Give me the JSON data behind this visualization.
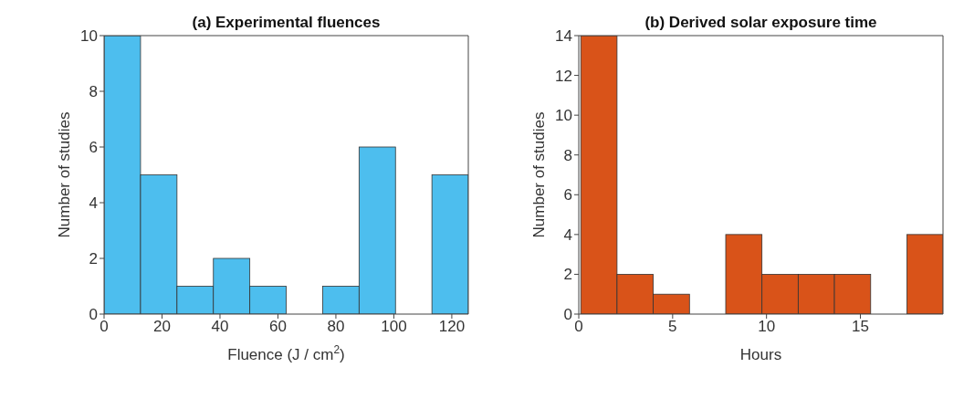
{
  "chart_data": [
    {
      "type": "histogram",
      "title": "(a) Experimental fluences",
      "xlabel": "Fluence (J / cm$^{2}$)",
      "ylabel": "Number of studies",
      "bins": [
        0,
        12.57,
        25.14,
        37.71,
        50.28,
        62.85,
        75.42,
        87.99,
        100.56,
        113.13,
        125.7
      ],
      "values": [
        10,
        5,
        1,
        2,
        1,
        0,
        1,
        6,
        0,
        5
      ],
      "color": "#4dbeee",
      "xlim": [
        0,
        125.7
      ],
      "xticks": [
        0,
        20,
        40,
        60,
        80,
        100,
        120
      ],
      "ylim": [
        0,
        10
      ],
      "yticks": [
        0,
        2,
        4,
        6,
        8,
        10
      ],
      "grid": false,
      "legend": false
    },
    {
      "type": "histogram",
      "title": "(b) Derived solar exposure time",
      "xlabel": "Hours",
      "ylabel": "Number of studies",
      "bins": [
        0.1,
        2.03,
        3.96,
        5.89,
        7.82,
        9.75,
        11.68,
        13.61,
        15.54,
        17.47,
        19.4
      ],
      "values": [
        14,
        2,
        1,
        0,
        4,
        2,
        2,
        2,
        0,
        4
      ],
      "color": "#d95319",
      "xlim": [
        0,
        19.4
      ],
      "xticks": [
        0,
        5,
        10,
        15
      ],
      "ylim": [
        0,
        14
      ],
      "yticks": [
        0,
        2,
        4,
        6,
        8,
        10,
        12,
        14
      ],
      "grid": false,
      "legend": false
    }
  ]
}
